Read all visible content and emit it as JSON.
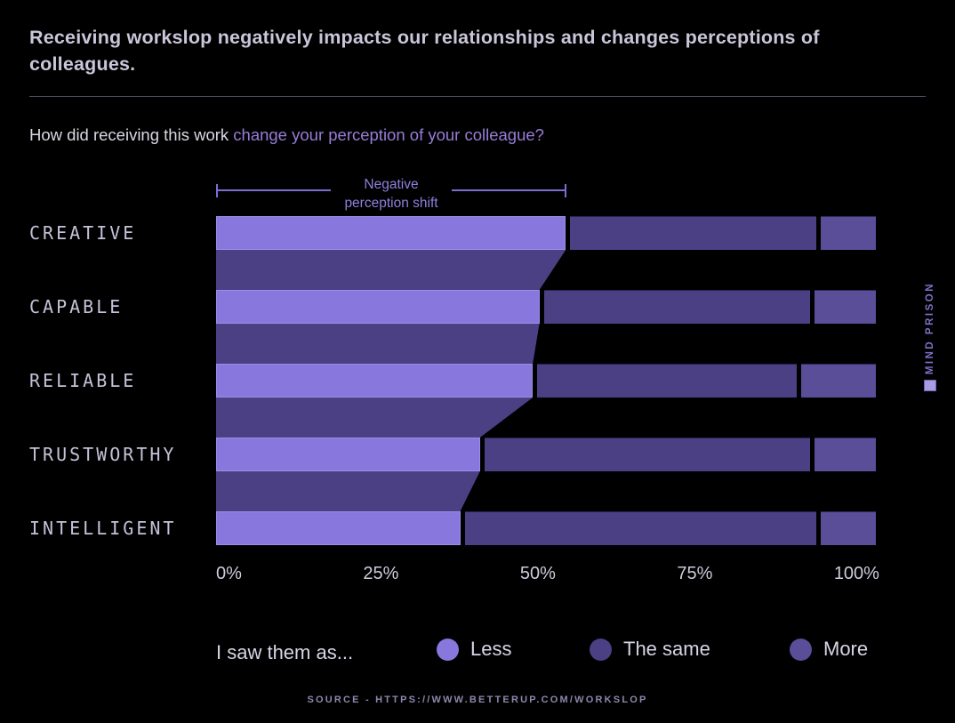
{
  "header": {
    "title": "Receiving workslop negatively impacts our relationships and changes perceptions of colleagues.",
    "question_prefix": "How did receiving this work ",
    "question_highlight": "change your perception of your colleague?"
  },
  "chart_data": {
    "type": "bar",
    "orientation": "horizontal",
    "stacked": true,
    "categories": [
      "CREATIVE",
      "CAPABLE",
      "RELIABLE",
      "TRUSTWORTHY",
      "INTELLIGENT"
    ],
    "series": [
      {
        "name": "Less",
        "color": "#8878dd",
        "values": [
          53,
          49,
          48,
          40,
          37
        ]
      },
      {
        "name": "The same",
        "color": "#4b4084",
        "values": [
          38,
          41,
          40,
          50,
          54
        ]
      },
      {
        "name": "More",
        "color": "#594e97",
        "values": [
          9,
          10,
          12,
          10,
          9
        ]
      }
    ],
    "connector_color": "#4b4084",
    "x_ticks": [
      "0%",
      "25%",
      "50%",
      "75%",
      "100%"
    ],
    "xlim": [
      0,
      100
    ],
    "annotation": {
      "line1": "Negative",
      "line2": "perception shift",
      "span_from_pct": 0,
      "span_to_pct": 53
    }
  },
  "legend": {
    "prompt": "I saw them as..."
  },
  "footer": {
    "source": "SOURCE - HTTPS://WWW.BETTERUP.COM/WORKSLOP"
  },
  "watermark": {
    "label": "MIND PRISON"
  },
  "colors": {
    "background": "#000000",
    "title_text": "#cac5d9",
    "accent_text": "#9a7cd8",
    "annotation": "#8d80dd"
  }
}
